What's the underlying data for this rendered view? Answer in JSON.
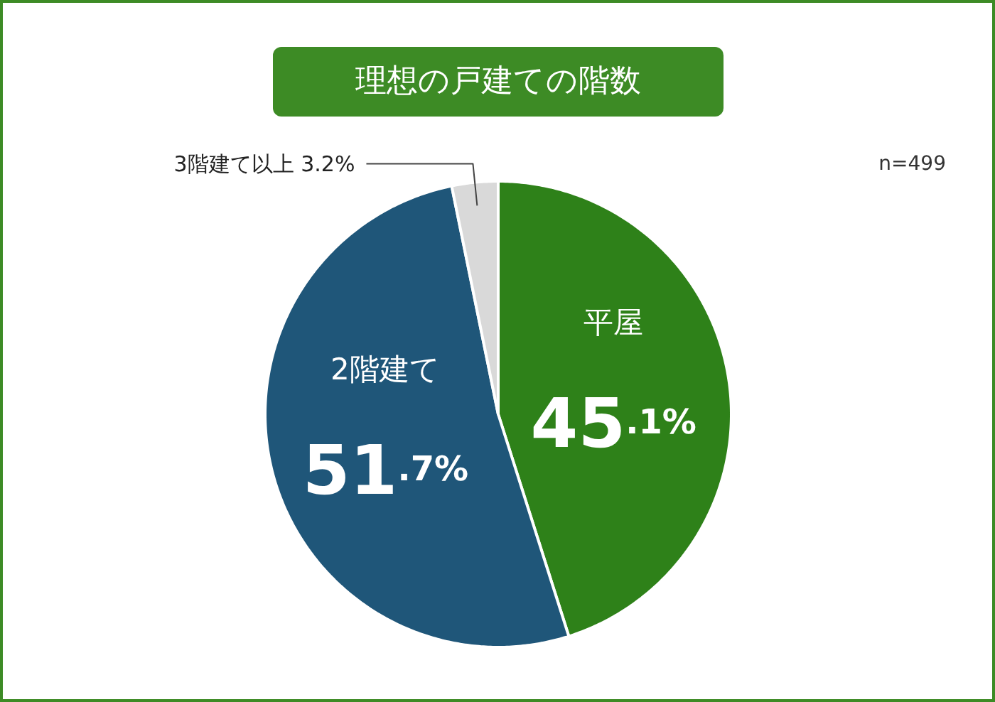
{
  "chart_data": {
    "type": "pie",
    "title": "理想の戸建ての階数",
    "categories": [
      "平屋",
      "2階建て",
      "3階建て以上"
    ],
    "values": [
      45.1,
      51.7,
      3.2
    ],
    "colors": [
      "#2e8119",
      "#1f5679",
      "#d9d9d9"
    ],
    "value_labels": [
      "45.1%",
      "51.7%",
      "3.2%"
    ],
    "annotations": [
      "n=499"
    ]
  }
}
